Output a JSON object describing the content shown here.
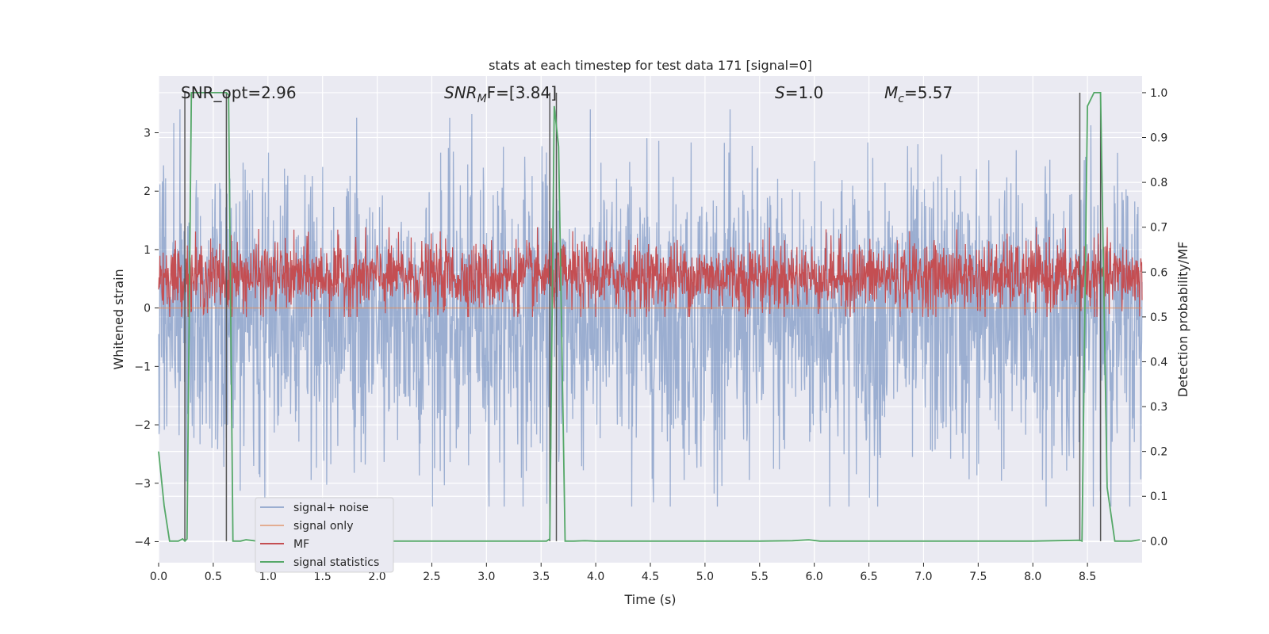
{
  "chart_data": {
    "type": "line",
    "title": "stats at each timestep for test data 171 [signal=0]",
    "xlabel": "Time (s)",
    "ylabel": "Whitened strain",
    "ylabel_right": "Detection probability/MF",
    "xlim": [
      0.0,
      9.0
    ],
    "ylim": [
      -4.36,
      3.97
    ],
    "ylim_right": [
      -0.048,
      1.037
    ],
    "x_ticks": [
      "0.0",
      "0.5",
      "1.0",
      "1.5",
      "2.0",
      "2.5",
      "3.0",
      "3.5",
      "4.0",
      "4.5",
      "5.0",
      "5.5",
      "6.0",
      "6.5",
      "7.0",
      "7.5",
      "8.0",
      "8.5"
    ],
    "x_tick_values": [
      0.0,
      0.5,
      1.0,
      1.5,
      2.0,
      2.5,
      3.0,
      3.5,
      4.0,
      4.5,
      5.0,
      5.5,
      6.0,
      6.5,
      7.0,
      7.5,
      8.0,
      8.5
    ],
    "y_ticks": [
      "3",
      "2",
      "1",
      "0",
      "−1",
      "−2",
      "−3",
      "−4"
    ],
    "y_tick_values": [
      3,
      2,
      1,
      0,
      -1,
      -2,
      -3,
      -4
    ],
    "y_ticks_right": [
      "1.0",
      "0.9",
      "0.8",
      "0.7",
      "0.6",
      "0.5",
      "0.4",
      "0.3",
      "0.2",
      "0.1",
      "0.0"
    ],
    "y_tick_values_right": [
      1.0,
      0.9,
      0.8,
      0.7,
      0.6,
      0.5,
      0.4,
      0.3,
      0.2,
      0.1,
      0.0
    ],
    "grid": true,
    "legend_position": "lower-left",
    "annotations": {
      "snr_opt": "SNR_opt=2.96",
      "snr_mf_prefix": "SNR",
      "snr_mf_sub": "M",
      "snr_mf_suffix": "F=[3.84]",
      "s_label": "S",
      "s_value": "=1.0",
      "mc_label": "M",
      "mc_sub": "c",
      "mc_value": "=5.57"
    },
    "series": [
      {
        "name": "signal+ noise",
        "color": "#4c72b0",
        "noise_min": -3.4,
        "noise_max": 3.4
      },
      {
        "name": "signal only",
        "color": "#dd8452",
        "values_constant": 0.0
      },
      {
        "name": "MF",
        "color": "#c44e52",
        "band_min_right": 0.52,
        "band_max_right": 0.66
      },
      {
        "name": "signal statistics",
        "color": "#55a868",
        "x": [
          0.0,
          0.05,
          0.1,
          0.18,
          0.22,
          0.24,
          0.26,
          0.3,
          0.34,
          0.5,
          0.6,
          0.62,
          0.64,
          0.68,
          0.75,
          0.8,
          0.9,
          1.0,
          1.5,
          2.0,
          2.5,
          3.0,
          3.5,
          3.55,
          3.58,
          3.62,
          3.66,
          3.72,
          3.8,
          3.9,
          4.0,
          5.0,
          5.5,
          5.8,
          5.95,
          6.05,
          6.2,
          7.0,
          8.0,
          8.43,
          8.45,
          8.5,
          8.56,
          8.62,
          8.68,
          8.75,
          8.8,
          8.9,
          8.98
        ],
        "y": [
          0.2,
          0.08,
          0.0,
          0.0,
          0.005,
          0.0,
          0.005,
          1.0,
          1.0,
          1.0,
          1.0,
          1.0,
          0.995,
          0.0,
          0.0,
          0.003,
          0.0,
          0.0,
          0.0,
          0.0,
          0.0,
          0.0,
          0.0,
          0.0,
          0.005,
          0.97,
          0.88,
          0.0,
          0.0,
          0.001,
          0.0,
          0.0,
          0.0,
          0.001,
          0.003,
          0.0,
          0.0,
          0.0,
          0.0,
          0.002,
          0.0,
          0.97,
          1.0,
          1.0,
          0.12,
          0.0,
          0.0,
          0.0,
          0.003
        ]
      }
    ],
    "vertical_markers": [
      0.24,
      0.62,
      3.58,
      3.64,
      8.43,
      8.62
    ]
  }
}
